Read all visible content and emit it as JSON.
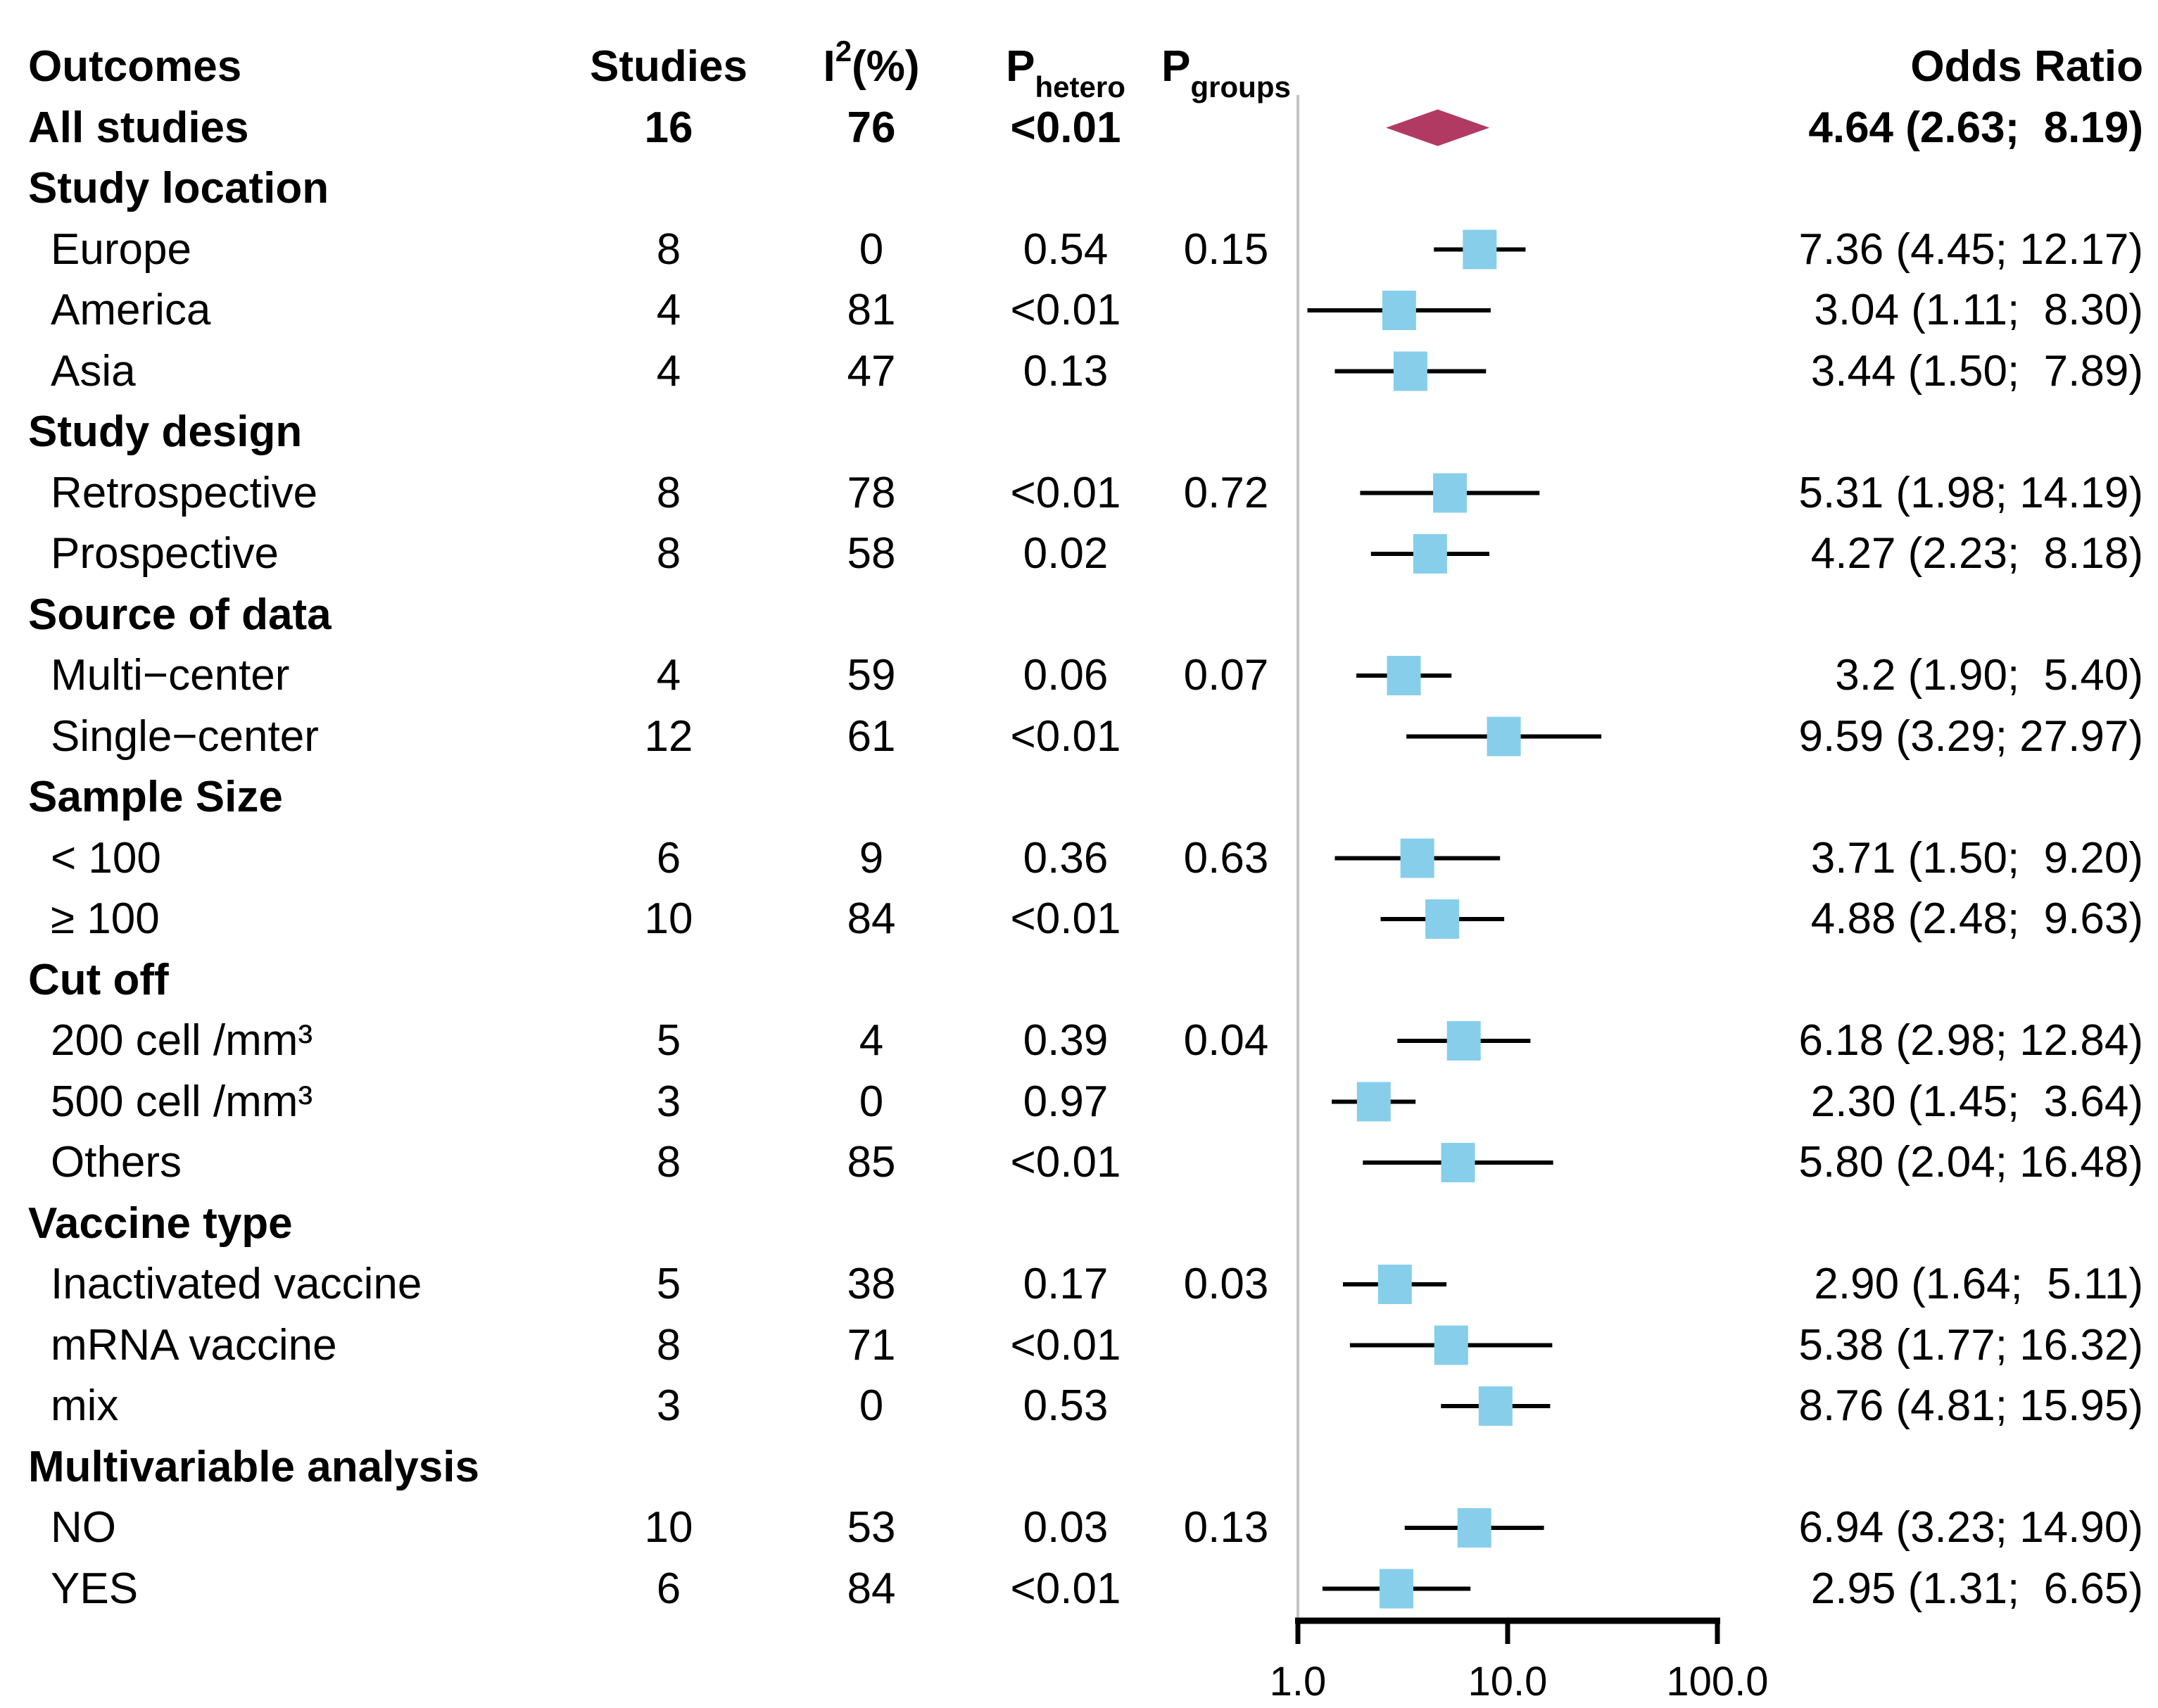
{
  "title_row": {
    "outcomes": "Outcomes",
    "studies": "Studies",
    "i2_base": "I",
    "i2_sup": "2",
    "i2_rest": "(%)",
    "p_het_base": "P",
    "p_het_sub": "hetero",
    "p_grp_base": "P",
    "p_grp_sub": "groups",
    "odds_ratio": "Odds Ratio"
  },
  "colors": {
    "square": "#87CEEB",
    "diamond": "#B13A63",
    "ci_line": "#000000",
    "ref_line": "#C4C4C4",
    "axis": "#000000",
    "text": "#000000"
  },
  "chart_data": {
    "type": "forest",
    "effect_measure": "Odds Ratio",
    "x_scale": "log10",
    "xlim": [
      1,
      100
    ],
    "axis": {
      "tick_values": [
        1,
        10,
        100
      ],
      "tick_labels": [
        "1.0",
        "10.0",
        "100.0"
      ]
    },
    "rows": [
      {
        "kind": "overall",
        "label": "All studies",
        "studies": "16",
        "i2": "76",
        "p_hetero": "<0.01",
        "p_groups": "",
        "est": 4.64,
        "lo": 2.63,
        "hi": 8.19,
        "or_text": "4.64 (2.63;  8.19)"
      },
      {
        "kind": "section",
        "label": "Study location",
        "studies": "",
        "i2": "",
        "p_hetero": "",
        "p_groups": "",
        "est": null,
        "lo": null,
        "hi": null,
        "or_text": ""
      },
      {
        "kind": "item",
        "label": "Europe",
        "studies": "8",
        "i2": "0",
        "p_hetero": "0.54",
        "p_groups": "0.15",
        "est": 7.36,
        "lo": 4.45,
        "hi": 12.17,
        "or_text": "7.36 (4.45; 12.17)"
      },
      {
        "kind": "item",
        "label": "America",
        "studies": "4",
        "i2": "81",
        "p_hetero": "<0.01",
        "p_groups": "",
        "est": 3.04,
        "lo": 1.11,
        "hi": 8.3,
        "or_text": "3.04 (1.11;  8.30)"
      },
      {
        "kind": "item",
        "label": "Asia",
        "studies": "4",
        "i2": "47",
        "p_hetero": "0.13",
        "p_groups": "",
        "est": 3.44,
        "lo": 1.5,
        "hi": 7.89,
        "or_text": "3.44 (1.50;  7.89)"
      },
      {
        "kind": "section",
        "label": "Study design",
        "studies": "",
        "i2": "",
        "p_hetero": "",
        "p_groups": "",
        "est": null,
        "lo": null,
        "hi": null,
        "or_text": ""
      },
      {
        "kind": "item",
        "label": "Retrospective",
        "studies": "8",
        "i2": "78",
        "p_hetero": "<0.01",
        "p_groups": "0.72",
        "est": 5.31,
        "lo": 1.98,
        "hi": 14.19,
        "or_text": "5.31 (1.98; 14.19)"
      },
      {
        "kind": "item",
        "label": "Prospective",
        "studies": "8",
        "i2": "58",
        "p_hetero": "0.02",
        "p_groups": "",
        "est": 4.27,
        "lo": 2.23,
        "hi": 8.18,
        "or_text": "4.27 (2.23;  8.18)"
      },
      {
        "kind": "section",
        "label": "Source of data",
        "studies": "",
        "i2": "",
        "p_hetero": "",
        "p_groups": "",
        "est": null,
        "lo": null,
        "hi": null,
        "or_text": ""
      },
      {
        "kind": "item",
        "label": "Multi−center",
        "studies": "4",
        "i2": "59",
        "p_hetero": "0.06",
        "p_groups": "0.07",
        "est": 3.2,
        "lo": 1.9,
        "hi": 5.4,
        "or_text": "3.2 (1.90;  5.40)"
      },
      {
        "kind": "item",
        "label": "Single−center",
        "studies": "12",
        "i2": "61",
        "p_hetero": "<0.01",
        "p_groups": "",
        "est": 9.59,
        "lo": 3.29,
        "hi": 27.97,
        "or_text": "9.59 (3.29; 27.97)"
      },
      {
        "kind": "section",
        "label": "Sample Size",
        "studies": "",
        "i2": "",
        "p_hetero": "",
        "p_groups": "",
        "est": null,
        "lo": null,
        "hi": null,
        "or_text": ""
      },
      {
        "kind": "item",
        "label": "< 100",
        "studies": "6",
        "i2": "9",
        "p_hetero": "0.36",
        "p_groups": "0.63",
        "est": 3.71,
        "lo": 1.5,
        "hi": 9.2,
        "or_text": "3.71 (1.50;  9.20)"
      },
      {
        "kind": "item",
        "label": "≥ 100",
        "studies": "10",
        "i2": "84",
        "p_hetero": "<0.01",
        "p_groups": "",
        "est": 4.88,
        "lo": 2.48,
        "hi": 9.63,
        "or_text": "4.88 (2.48;  9.63)"
      },
      {
        "kind": "section",
        "label": "Cut off",
        "studies": "",
        "i2": "",
        "p_hetero": "",
        "p_groups": "",
        "est": null,
        "lo": null,
        "hi": null,
        "or_text": ""
      },
      {
        "kind": "item",
        "label": "200 cell /mm³",
        "studies": "5",
        "i2": "4",
        "p_hetero": "0.39",
        "p_groups": "0.04",
        "est": 6.18,
        "lo": 2.98,
        "hi": 12.84,
        "or_text": "6.18 (2.98; 12.84)"
      },
      {
        "kind": "item",
        "label": "500 cell /mm³",
        "studies": "3",
        "i2": "0",
        "p_hetero": "0.97",
        "p_groups": "",
        "est": 2.3,
        "lo": 1.45,
        "hi": 3.64,
        "or_text": "2.30 (1.45;  3.64)"
      },
      {
        "kind": "item",
        "label": "Others",
        "studies": "8",
        "i2": "85",
        "p_hetero": "<0.01",
        "p_groups": "",
        "est": 5.8,
        "lo": 2.04,
        "hi": 16.48,
        "or_text": "5.80 (2.04; 16.48)"
      },
      {
        "kind": "section",
        "label": "Vaccine type",
        "studies": "",
        "i2": "",
        "p_hetero": "",
        "p_groups": "",
        "est": null,
        "lo": null,
        "hi": null,
        "or_text": ""
      },
      {
        "kind": "item",
        "label": "Inactivated vaccine",
        "studies": "5",
        "i2": "38",
        "p_hetero": "0.17",
        "p_groups": "0.03",
        "est": 2.9,
        "lo": 1.64,
        "hi": 5.11,
        "or_text": "2.90 (1.64;  5.11)"
      },
      {
        "kind": "item",
        "label": "mRNA vaccine",
        "studies": "8",
        "i2": "71",
        "p_hetero": "<0.01",
        "p_groups": "",
        "est": 5.38,
        "lo": 1.77,
        "hi": 16.32,
        "or_text": "5.38 (1.77; 16.32)"
      },
      {
        "kind": "item",
        "label": "mix",
        "studies": "3",
        "i2": "0",
        "p_hetero": "0.53",
        "p_groups": "",
        "est": 8.76,
        "lo": 4.81,
        "hi": 15.95,
        "or_text": "8.76 (4.81; 15.95)"
      },
      {
        "kind": "section",
        "label": "Multivariable analysis",
        "studies": "",
        "i2": "",
        "p_hetero": "",
        "p_groups": "",
        "est": null,
        "lo": null,
        "hi": null,
        "or_text": ""
      },
      {
        "kind": "item",
        "label": "NO",
        "studies": "10",
        "i2": "53",
        "p_hetero": "0.03",
        "p_groups": "0.13",
        "est": 6.94,
        "lo": 3.23,
        "hi": 14.9,
        "or_text": "6.94 (3.23; 14.90)"
      },
      {
        "kind": "item",
        "label": "YES",
        "studies": "6",
        "i2": "84",
        "p_hetero": "<0.01",
        "p_groups": "",
        "est": 2.95,
        "lo": 1.31,
        "hi": 6.65,
        "or_text": "2.95 (1.31;  6.65)"
      }
    ]
  }
}
